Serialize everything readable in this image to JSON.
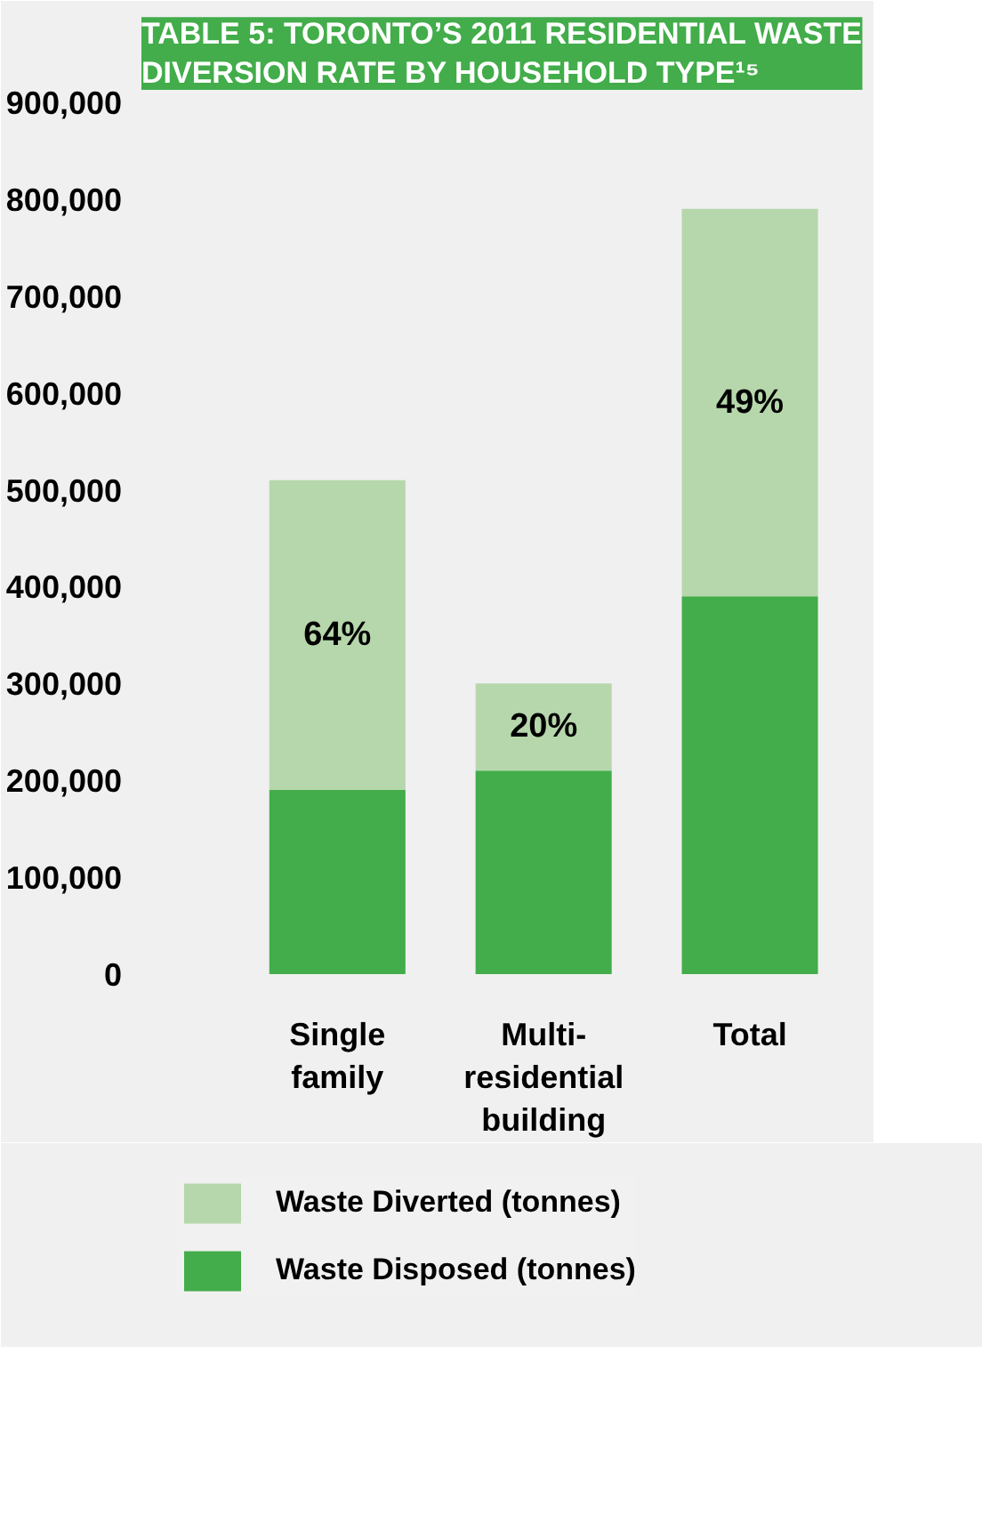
{
  "chart_data": {
    "type": "bar",
    "title": "TABLE 5: TORONTO’S 2011 RESIDENTIAL WASTE DIVERSION RATE BY HOUSEHOLD TYPE¹⁵",
    "categories": [
      "Single family",
      "Multi-residential building",
      "Total"
    ],
    "stacked": true,
    "series": [
      {
        "name": "Waste Disposed (tonnes)",
        "color": "#42ad4a",
        "values": [
          190000,
          210000,
          390000
        ]
      },
      {
        "name": "Waste Diverted (tonnes)",
        "color": "#b6d7ab",
        "values": [
          320000,
          90000,
          400000
        ]
      }
    ],
    "annotations": [
      "64%",
      "20%",
      "49%"
    ],
    "ylim": [
      0,
      900000
    ],
    "yticks": [
      {
        "value": 0,
        "label": "0"
      },
      {
        "value": 100000,
        "label": "100,000"
      },
      {
        "value": 200000,
        "label": "200,000"
      },
      {
        "value": 300000,
        "label": "300,000"
      },
      {
        "value": 400000,
        "label": "400,000"
      },
      {
        "value": 500000,
        "label": "500,000"
      },
      {
        "value": 600000,
        "label": "600,000"
      },
      {
        "value": 700000,
        "label": "700,000"
      },
      {
        "value": 800000,
        "label": "800,000"
      },
      {
        "value": 900000,
        "label": "900,000"
      }
    ],
    "legend": "bottom"
  }
}
